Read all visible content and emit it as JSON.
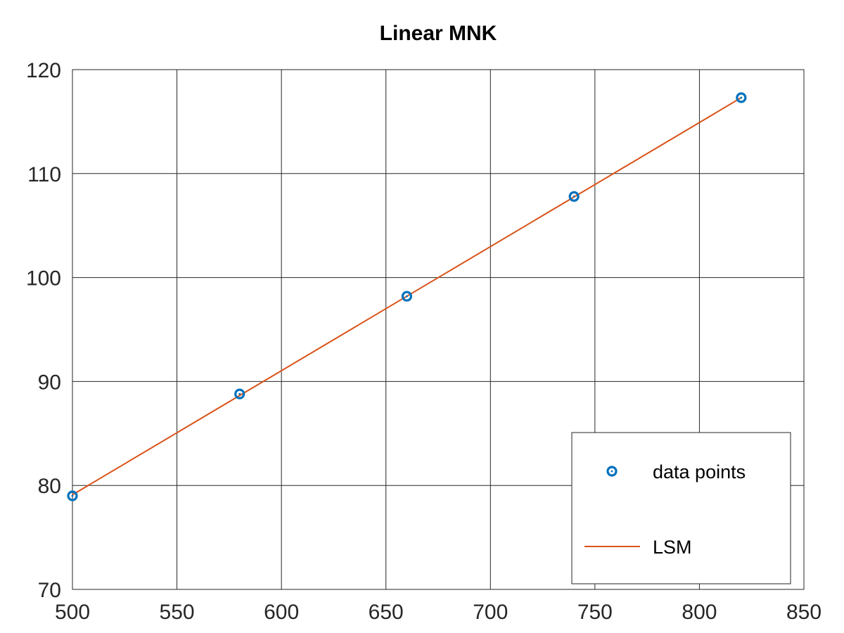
{
  "chart_data": {
    "type": "scatter",
    "title": "Linear MNK",
    "xlabel": "",
    "ylabel": "",
    "xlim": [
      500,
      850
    ],
    "ylim": [
      70,
      120
    ],
    "xticks": [
      500,
      550,
      600,
      650,
      700,
      750,
      800,
      850
    ],
    "yticks": [
      70,
      80,
      90,
      100,
      110,
      120
    ],
    "grid": true,
    "legend_location": "bottom-right",
    "series": [
      {
        "name": "data points",
        "type": "scatter",
        "marker": "circle",
        "color": "#0072bd",
        "x": [
          500,
          580,
          660,
          740,
          820
        ],
        "y": [
          79.0,
          88.8,
          98.2,
          107.8,
          117.3
        ]
      },
      {
        "name": "LSM",
        "type": "line",
        "color": "#d95319",
        "x": [
          500,
          820
        ],
        "y": [
          79.1,
          117.3
        ]
      }
    ]
  }
}
